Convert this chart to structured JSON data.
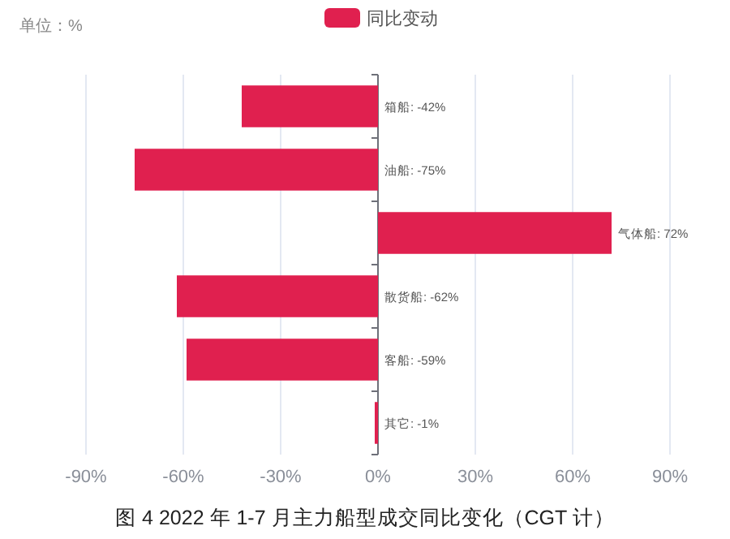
{
  "chart_data": {
    "type": "bar",
    "orientation": "horizontal",
    "title": "图 4 2022 年 1-7 月主力船型成交同比变化（CGT 计）",
    "annotations": [
      "单位：%"
    ],
    "categories": [
      null,
      null,
      null,
      null,
      null,
      null
    ],
    "series": [
      {
        "name": "同比变动",
        "color": "#e0204f",
        "values": [
          -42,
          -75,
          72,
          -62,
          -59,
          -1
        ],
        "value_labels": [
          "箱船: -42%",
          "油船: -75%",
          "气体船: 72%",
          "散货船: -62%",
          "客船: -59%",
          "其它: -1%"
        ]
      }
    ],
    "xlim": [
      -90,
      90
    ],
    "xticks": [
      {
        "value": -90,
        "label": "-90%"
      },
      {
        "value": -60,
        "label": "-60%"
      },
      {
        "value": -30,
        "label": "-30%"
      },
      {
        "value": 0,
        "label": "0%"
      },
      {
        "value": 30,
        "label": "30%"
      },
      {
        "value": 60,
        "label": "60%"
      },
      {
        "value": 90,
        "label": "90%"
      }
    ],
    "grid": "x",
    "legend": "top"
  }
}
